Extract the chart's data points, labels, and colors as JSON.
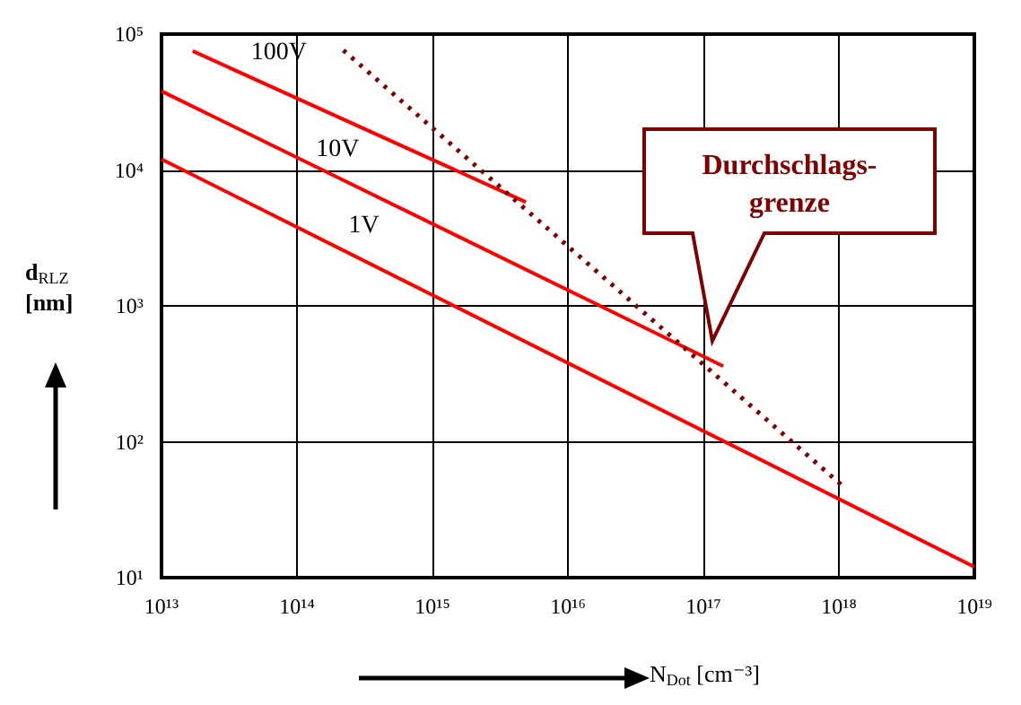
{
  "chart_data": {
    "type": "line",
    "xlabel": "N$_{Dot}$ [cm⁻³]",
    "ylabel": "d$_{RLZ}$ [nm]",
    "log": "xy",
    "grid": true,
    "marker": "none",
    "line_style": "solid",
    "xlim": [
      10000000000000.0,
      1e+19
    ],
    "ylim": [
      10,
      100000
    ],
    "xticks": [
      {
        "value": 10000000000000.0,
        "label": "10¹³"
      },
      {
        "value": 100000000000000.0,
        "label": "10¹⁴"
      },
      {
        "value": 1000000000000000.0,
        "label": "10¹⁵"
      },
      {
        "value": 1e+16,
        "label": "10¹⁶"
      },
      {
        "value": 1e+17,
        "label": "10¹⁷"
      },
      {
        "value": 1e+18,
        "label": "10¹⁸"
      },
      {
        "value": 1e+19,
        "label": "10¹⁹"
      }
    ],
    "yticks": [
      {
        "value": 10,
        "label": "10¹"
      },
      {
        "value": 100,
        "label": "10²"
      },
      {
        "value": 1000,
        "label": "10³"
      },
      {
        "value": 10000,
        "label": "10⁴"
      },
      {
        "value": 100000,
        "label": "10⁵"
      }
    ],
    "series": [
      {
        "name": "1V",
        "color": "#ff0000",
        "x": [
          10000000000000.0,
          1e+19
        ],
        "values": [
          12000,
          12
        ]
      },
      {
        "name": "10V",
        "color": "#ff0000",
        "x": [
          10000000000000.0,
          1.4e+17
        ],
        "values": [
          38000,
          360
        ]
      },
      {
        "name": "100V",
        "color": "#ff0000",
        "x": [
          17000000000000.0,
          4900000000000000.0
        ],
        "values": [
          75000,
          5800
        ]
      },
      {
        "color": "#800000",
        "line_style": "dotted",
        "x": [
          220000000000000.0,
          1.1e+18
        ],
        "values": [
          76000,
          46
        ]
      }
    ],
    "annotations": [
      "Durchschlags-grenze"
    ]
  }
}
